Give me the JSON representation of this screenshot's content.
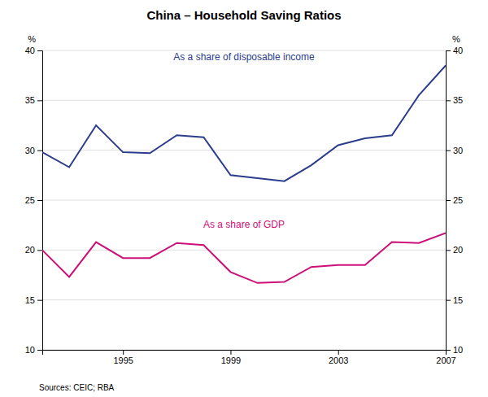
{
  "chart_data": {
    "type": "line",
    "title": "China – Household Saving Ratios",
    "x": [
      1992,
      1993,
      1994,
      1995,
      1996,
      1997,
      1998,
      1999,
      2000,
      2001,
      2002,
      2003,
      2004,
      2005,
      2006,
      2007
    ],
    "series": [
      {
        "name": "As a share of disposable income",
        "color": "#2B3D8C",
        "values": [
          29.8,
          28.3,
          32.5,
          29.8,
          29.7,
          31.5,
          31.3,
          27.5,
          27.2,
          26.9,
          28.5,
          30.5,
          31.2,
          31.5,
          35.5,
          38.5
        ]
      },
      {
        "name": "As a share of GDP",
        "color": "#CC1077",
        "values": [
          20.0,
          17.3,
          20.8,
          19.2,
          19.2,
          20.7,
          20.5,
          17.8,
          16.7,
          16.8,
          18.3,
          18.5,
          18.5,
          20.8,
          20.7,
          21.7
        ]
      }
    ],
    "xlim": [
      1992,
      2007
    ],
    "xticks": [
      1995,
      1999,
      2003,
      2007
    ],
    "ylim": [
      10,
      40
    ],
    "yticks": [
      10,
      15,
      20,
      25,
      30,
      35,
      40
    ],
    "y2lim": [
      10,
      40
    ],
    "y2ticks": [
      10,
      15,
      20,
      25,
      30,
      35,
      40
    ],
    "ylabel": "%",
    "y2label": "%",
    "grid": "y",
    "annotations": [
      "Sources: CEIC; RBA"
    ]
  }
}
